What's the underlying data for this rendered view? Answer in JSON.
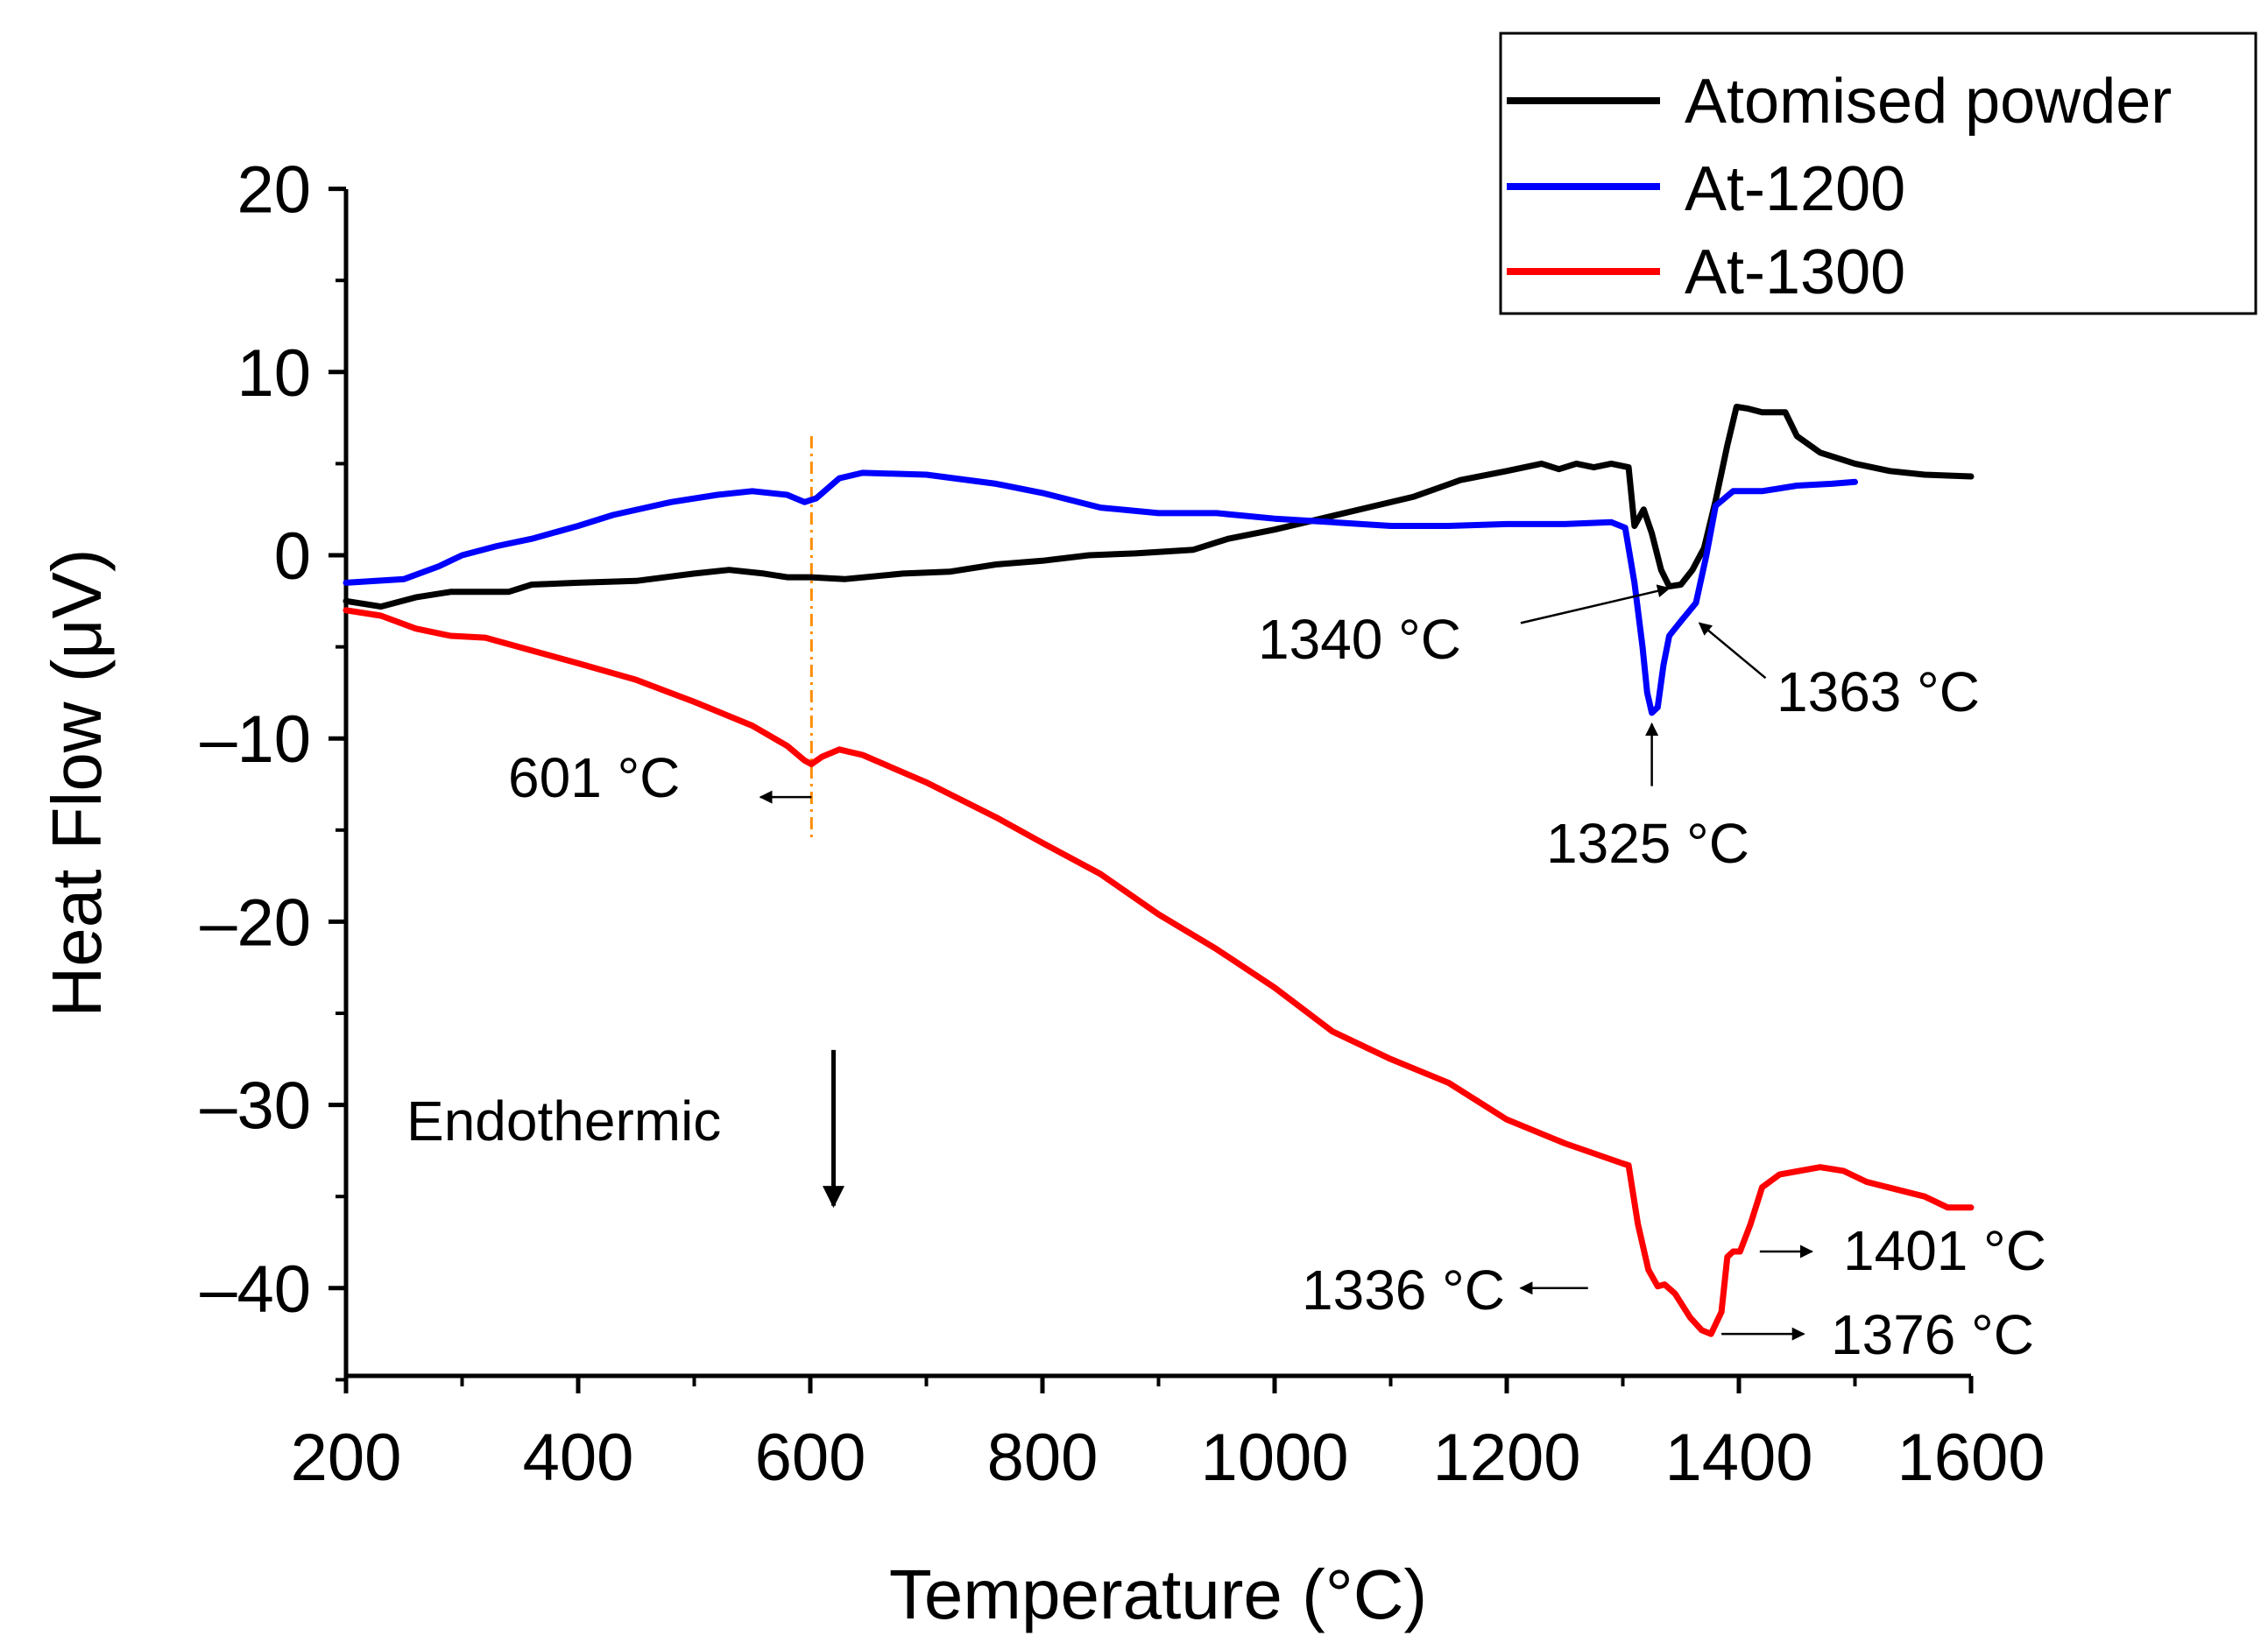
{
  "chart_data": {
    "type": "line",
    "title": "",
    "xlabel": "Temperature (°C)",
    "ylabel": "Heat Flow (μV)",
    "xlim": [
      200,
      1600
    ],
    "ylim": [
      -45,
      20
    ],
    "x_ticks": [
      200,
      400,
      600,
      800,
      1000,
      1200,
      1400,
      1600
    ],
    "x_tick_labels": [
      "200",
      "400",
      "600",
      "800",
      "1000",
      "1200",
      "1400",
      "1600"
    ],
    "y_ticks": [
      20,
      10,
      0,
      -10,
      -20,
      -30,
      -40
    ],
    "y_tick_labels": [
      "20",
      "10",
      "0",
      "–10",
      "–20",
      "–30",
      "–40"
    ],
    "legend": {
      "position": "top-right"
    },
    "series": [
      {
        "name": "Atomised powder",
        "color": "#000000",
        "points": [
          [
            200,
            -2.5
          ],
          [
            230,
            -2.8
          ],
          [
            260,
            -2.3
          ],
          [
            290,
            -2.0
          ],
          [
            340,
            -2.0
          ],
          [
            360,
            -1.6
          ],
          [
            400,
            -1.5
          ],
          [
            450,
            -1.4
          ],
          [
            500,
            -1.0
          ],
          [
            530,
            -0.8
          ],
          [
            560,
            -1.0
          ],
          [
            580,
            -1.2
          ],
          [
            600,
            -1.2
          ],
          [
            630,
            -1.3
          ],
          [
            680,
            -1.0
          ],
          [
            720,
            -0.9
          ],
          [
            760,
            -0.5
          ],
          [
            800,
            -0.3
          ],
          [
            840,
            0.0
          ],
          [
            880,
            0.1
          ],
          [
            930,
            0.3
          ],
          [
            960,
            0.9
          ],
          [
            1000,
            1.4
          ],
          [
            1040,
            2.0
          ],
          [
            1080,
            2.6
          ],
          [
            1120,
            3.2
          ],
          [
            1160,
            4.1
          ],
          [
            1200,
            4.6
          ],
          [
            1230,
            5.0
          ],
          [
            1245,
            4.7
          ],
          [
            1260,
            5.0
          ],
          [
            1275,
            4.8
          ],
          [
            1290,
            5.0
          ],
          [
            1305,
            4.8
          ],
          [
            1310,
            1.6
          ],
          [
            1318,
            2.5
          ],
          [
            1325,
            1.2
          ],
          [
            1333,
            -0.8
          ],
          [
            1340,
            -1.7
          ],
          [
            1350,
            -1.6
          ],
          [
            1360,
            -0.8
          ],
          [
            1370,
            0.4
          ],
          [
            1380,
            3.0
          ],
          [
            1390,
            6.0
          ],
          [
            1398,
            8.1
          ],
          [
            1408,
            8.0
          ],
          [
            1420,
            7.8
          ],
          [
            1440,
            7.8
          ],
          [
            1450,
            6.5
          ],
          [
            1470,
            5.6
          ],
          [
            1500,
            5.0
          ],
          [
            1530,
            4.6
          ],
          [
            1560,
            4.4
          ],
          [
            1600,
            4.3
          ]
        ]
      },
      {
        "name": "At-1200",
        "color": "#0000ff",
        "points": [
          [
            200,
            -1.5
          ],
          [
            250,
            -1.3
          ],
          [
            280,
            -0.6
          ],
          [
            300,
            0.0
          ],
          [
            330,
            0.5
          ],
          [
            360,
            0.9
          ],
          [
            400,
            1.6
          ],
          [
            430,
            2.2
          ],
          [
            480,
            2.9
          ],
          [
            520,
            3.3
          ],
          [
            550,
            3.5
          ],
          [
            580,
            3.3
          ],
          [
            595,
            2.9
          ],
          [
            605,
            3.1
          ],
          [
            625,
            4.2
          ],
          [
            645,
            4.5
          ],
          [
            700,
            4.4
          ],
          [
            760,
            3.9
          ],
          [
            800,
            3.4
          ],
          [
            850,
            2.6
          ],
          [
            900,
            2.3
          ],
          [
            950,
            2.3
          ],
          [
            1000,
            2.0
          ],
          [
            1050,
            1.8
          ],
          [
            1100,
            1.6
          ],
          [
            1150,
            1.6
          ],
          [
            1200,
            1.7
          ],
          [
            1250,
            1.7
          ],
          [
            1290,
            1.8
          ],
          [
            1302,
            1.5
          ],
          [
            1310,
            -1.5
          ],
          [
            1317,
            -5.0
          ],
          [
            1321,
            -7.5
          ],
          [
            1325,
            -8.6
          ],
          [
            1330,
            -8.3
          ],
          [
            1335,
            -6.0
          ],
          [
            1340,
            -4.4
          ],
          [
            1350,
            -3.6
          ],
          [
            1363,
            -2.6
          ],
          [
            1372,
            0.0
          ],
          [
            1380,
            2.7
          ],
          [
            1395,
            3.5
          ],
          [
            1420,
            3.5
          ],
          [
            1450,
            3.8
          ],
          [
            1480,
            3.9
          ],
          [
            1500,
            4.0
          ]
        ]
      },
      {
        "name": "At-1300",
        "color": "#ff0000",
        "points": [
          [
            200,
            -3.0
          ],
          [
            230,
            -3.3
          ],
          [
            260,
            -4.0
          ],
          [
            290,
            -4.4
          ],
          [
            320,
            -4.5
          ],
          [
            360,
            -5.2
          ],
          [
            400,
            -5.9
          ],
          [
            450,
            -6.8
          ],
          [
            500,
            -8.0
          ],
          [
            550,
            -9.3
          ],
          [
            580,
            -10.4
          ],
          [
            595,
            -11.2
          ],
          [
            601,
            -11.4
          ],
          [
            610,
            -11.0
          ],
          [
            625,
            -10.6
          ],
          [
            645,
            -10.9
          ],
          [
            700,
            -12.4
          ],
          [
            760,
            -14.3
          ],
          [
            800,
            -15.7
          ],
          [
            850,
            -17.4
          ],
          [
            900,
            -19.6
          ],
          [
            950,
            -21.5
          ],
          [
            1000,
            -23.6
          ],
          [
            1050,
            -26.0
          ],
          [
            1100,
            -27.5
          ],
          [
            1150,
            -28.8
          ],
          [
            1200,
            -30.8
          ],
          [
            1250,
            -32.1
          ],
          [
            1300,
            -33.2
          ],
          [
            1305,
            -33.3
          ],
          [
            1313,
            -36.5
          ],
          [
            1322,
            -39.0
          ],
          [
            1330,
            -39.9
          ],
          [
            1336,
            -39.8
          ],
          [
            1345,
            -40.3
          ],
          [
            1358,
            -41.6
          ],
          [
            1368,
            -42.3
          ],
          [
            1376,
            -42.5
          ],
          [
            1385,
            -41.3
          ],
          [
            1390,
            -38.3
          ],
          [
            1395,
            -38.0
          ],
          [
            1401,
            -38.0
          ],
          [
            1410,
            -36.5
          ],
          [
            1420,
            -34.5
          ],
          [
            1435,
            -33.8
          ],
          [
            1470,
            -33.4
          ],
          [
            1490,
            -33.6
          ],
          [
            1510,
            -34.2
          ],
          [
            1560,
            -35.0
          ],
          [
            1580,
            -35.6
          ],
          [
            1600,
            -35.6
          ]
        ]
      }
    ],
    "reference_line": {
      "x": 601,
      "y_range": [
        -15.5,
        6.5
      ],
      "color": "#ff8c00",
      "style": "dash-dot"
    },
    "annotations": [
      {
        "text": "601 °C",
        "arrow_from": [
          601,
          -13.2
        ],
        "arrow_to": [
          557,
          -13.2
        ]
      },
      {
        "text": "1340 °C",
        "arrow_from": [
          1212,
          -3.7
        ],
        "arrow_to": [
          1340,
          -1.8
        ]
      },
      {
        "text": "1363 °C",
        "arrow_from": [
          1423,
          -6.7
        ],
        "arrow_to": [
          1366,
          -3.7
        ]
      },
      {
        "text": "1325 °C",
        "arrow_from": [
          1325,
          -12.6
        ],
        "arrow_to": [
          1325,
          -9.2
        ]
      },
      {
        "text": "1336 °C",
        "arrow_from": [
          1270,
          -40.0
        ],
        "arrow_to": [
          1212,
          -40.0
        ]
      },
      {
        "text": "1401 °C",
        "arrow_from": [
          1418,
          -38.0
        ],
        "arrow_to": [
          1463,
          -38.0
        ]
      },
      {
        "text": "1376 °C",
        "arrow_from": [
          1385,
          -42.5
        ],
        "arrow_to": [
          1456,
          -42.5
        ]
      }
    ],
    "side_note": {
      "text": "Endothermic",
      "arrow_x": 620,
      "arrow_y_range": [
        -27,
        -35.5
      ]
    }
  }
}
